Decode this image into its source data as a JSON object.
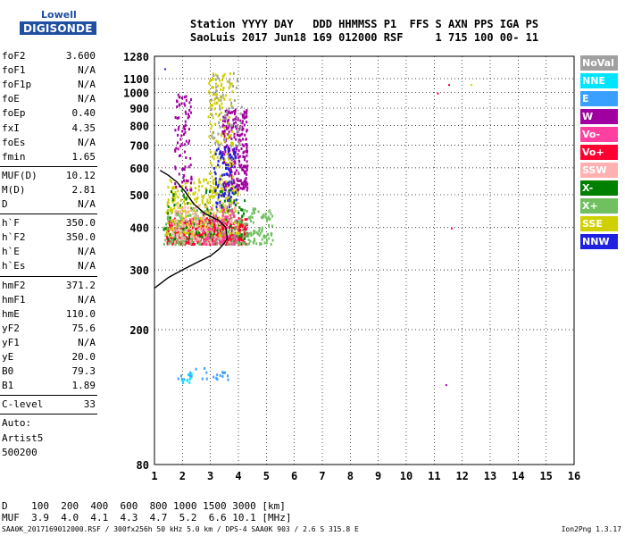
{
  "logo": {
    "line1": "Lowell",
    "line2": "DIGISONDE"
  },
  "header": {
    "line1": "Station YYYY DAY   DDD HHMMSS P1  FFS S AXN PPS IGA PS",
    "line2": "SaoLuis 2017 Jun18 169 012000 RSF     1 715 100 00- 11"
  },
  "params": {
    "group1": [
      {
        "label": "foF2",
        "value": "3.600"
      },
      {
        "label": "foF1",
        "value": "N/A"
      },
      {
        "label": "foF1p",
        "value": "N/A"
      },
      {
        "label": "foE",
        "value": "N/A"
      },
      {
        "label": "foEp",
        "value": "0.40"
      },
      {
        "label": "fxI",
        "value": "4.35"
      },
      {
        "label": "foEs",
        "value": "N/A"
      },
      {
        "label": "fmin",
        "value": "1.65"
      }
    ],
    "group2": [
      {
        "label": "MUF(D)",
        "value": "10.12"
      },
      {
        "label": "M(D)",
        "value": "2.81"
      },
      {
        "label": "D",
        "value": "N/A"
      }
    ],
    "group3": [
      {
        "label": "h`F",
        "value": "350.0"
      },
      {
        "label": "h`F2",
        "value": "350.0"
      },
      {
        "label": "h`E",
        "value": "N/A"
      },
      {
        "label": "h`Es",
        "value": "N/A"
      }
    ],
    "group4": [
      {
        "label": "hmF2",
        "value": "371.2"
      },
      {
        "label": "hmF1",
        "value": "N/A"
      },
      {
        "label": "hmE",
        "value": "110.0"
      },
      {
        "label": "yF2",
        "value": "75.6"
      },
      {
        "label": "yF1",
        "value": "N/A"
      },
      {
        "label": "yE",
        "value": "20.0"
      },
      {
        "label": "B0",
        "value": "79.3"
      },
      {
        "label": "B1",
        "value": "1.89"
      }
    ],
    "group5": [
      {
        "label": "C-level",
        "value": "33"
      }
    ],
    "scaling": {
      "line1": "Auto:",
      "line2": "Artist5",
      "line3": "500200"
    }
  },
  "legend": [
    {
      "label": "NoVal",
      "color": "#a0a0a0"
    },
    {
      "label": "NNE",
      "color": "#00e5ff"
    },
    {
      "label": "E",
      "color": "#3aa0ff"
    },
    {
      "label": "W",
      "color": "#a000a0"
    },
    {
      "label": "Vo-",
      "color": "#ff40a0"
    },
    {
      "label": "Vo+",
      "color": "#ff0030"
    },
    {
      "label": "SSW",
      "color": "#ffb0b0"
    },
    {
      "label": "X-",
      "color": "#008000"
    },
    {
      "label": "X+",
      "color": "#70c060"
    },
    {
      "label": "SSE",
      "color": "#d0d000"
    },
    {
      "label": "NNW",
      "color": "#2020e0"
    }
  ],
  "bottom": {
    "line1": "D    100  200  400  600  800 1000 1500 3000 [km]",
    "line2": "MUF  3.9  4.0  4.1  4.3  4.7  5.2  6.6 10.1 [MHz]"
  },
  "footer": {
    "left": "SAA0K_2017169012000.RSF / 300fx256h 50 kHz 5.0 km / DPS-4 SAA0K 903 / 2.6 S 315.8 E",
    "right": "Ion2Png 1.3.17"
  },
  "chart_data": {
    "type": "scatter",
    "x_range": [
      1,
      16
    ],
    "x_ticks": [
      1,
      2,
      3,
      4,
      5,
      6,
      7,
      8,
      9,
      10,
      11,
      12,
      13,
      14,
      15,
      16
    ],
    "y_range": [
      80,
      1280
    ],
    "y_scale": "log",
    "y_ticks": [
      80,
      200,
      300,
      400,
      500,
      600,
      700,
      800,
      900,
      1000,
      1100,
      1280
    ],
    "grid": "dotted",
    "profile": [
      [
        1.0,
        265
      ],
      [
        1.5,
        285
      ],
      [
        2.0,
        300
      ],
      [
        2.5,
        315
      ],
      [
        3.0,
        330
      ],
      [
        3.3,
        345
      ],
      [
        3.5,
        360
      ],
      [
        3.6,
        372
      ],
      [
        3.55,
        400
      ],
      [
        3.3,
        420
      ],
      [
        2.8,
        440
      ],
      [
        2.4,
        470
      ],
      [
        2.1,
        510
      ],
      [
        1.8,
        545
      ],
      [
        1.5,
        570
      ],
      [
        1.2,
        590
      ]
    ],
    "clusters": [
      {
        "name": "Vo+",
        "x": [
          1.4,
          4.3
        ],
        "y": [
          360,
          430
        ],
        "n": 520
      },
      {
        "name": "X+",
        "x": [
          1.3,
          5.2
        ],
        "y": [
          360,
          460
        ],
        "n": 320
      },
      {
        "name": "SSE",
        "x": [
          1.4,
          4.0
        ],
        "y": [
          380,
          560
        ],
        "n": 260
      },
      {
        "name": "W",
        "x": [
          3.4,
          4.3
        ],
        "y": [
          520,
          900
        ],
        "n": 240
      },
      {
        "name": "W",
        "x": [
          1.7,
          2.3
        ],
        "y": [
          520,
          1000
        ],
        "n": 90
      },
      {
        "name": "SSE",
        "x": [
          2.9,
          3.8
        ],
        "y": [
          450,
          1150
        ],
        "n": 170
      },
      {
        "name": "NNW",
        "x": [
          3.1,
          3.9
        ],
        "y": [
          460,
          700
        ],
        "n": 90
      },
      {
        "name": "X-",
        "x": [
          1.3,
          4.2
        ],
        "y": [
          370,
          520
        ],
        "n": 90
      },
      {
        "name": "SSW",
        "x": [
          1.6,
          3.9
        ],
        "y": [
          360,
          470
        ],
        "n": 140
      },
      {
        "name": "Vo-",
        "x": [
          2.7,
          3.9
        ],
        "y": [
          360,
          460
        ],
        "n": 80
      },
      {
        "name": "NoVal",
        "x": [
          3.0,
          4.1
        ],
        "y": [
          700,
          1150
        ],
        "n": 60
      },
      {
        "name": "E",
        "x": [
          1.8,
          3.7
        ],
        "y": [
          143,
          155
        ],
        "n": 24
      },
      {
        "name": "NNE",
        "x": [
          1.9,
          2.3
        ],
        "y": [
          140,
          150
        ],
        "n": 8
      }
    ],
    "isolated_points": [
      {
        "name": "Vo+",
        "x": 11.1,
        "y": 1000
      },
      {
        "name": "Vo+",
        "x": 11.5,
        "y": 1060
      },
      {
        "name": "SSE",
        "x": 12.3,
        "y": 1060
      },
      {
        "name": "W",
        "x": 11.4,
        "y": 138
      },
      {
        "name": "Vo+",
        "x": 11.6,
        "y": 400
      },
      {
        "name": "NNW",
        "x": 1.35,
        "y": 1180
      }
    ]
  }
}
